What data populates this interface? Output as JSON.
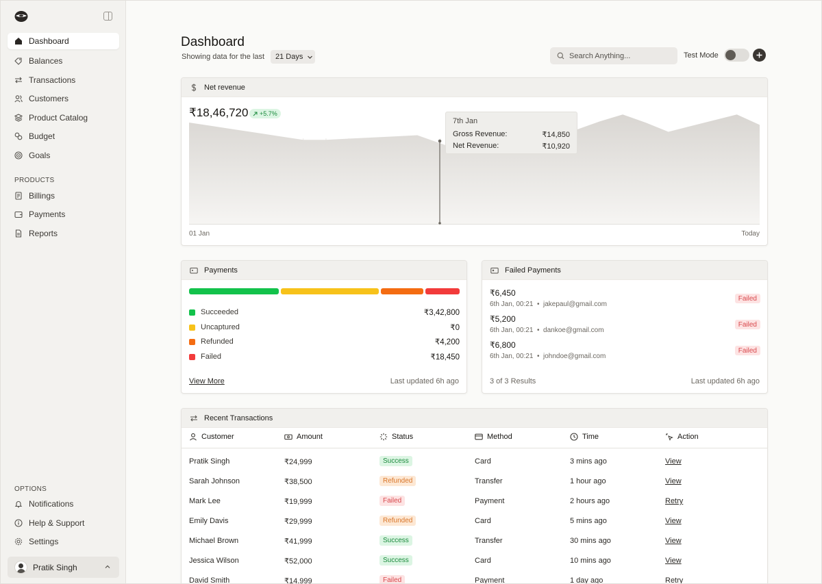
{
  "sidebar": {
    "items": [
      {
        "label": "Dashboard",
        "icon": "home-icon"
      },
      {
        "label": "Balances",
        "icon": "tag-icon"
      },
      {
        "label": "Transactions",
        "icon": "arrows-icon"
      },
      {
        "label": "Customers",
        "icon": "users-icon"
      },
      {
        "label": "Product Catalog",
        "icon": "layers-icon"
      },
      {
        "label": "Budget",
        "icon": "coins-icon"
      },
      {
        "label": "Goals",
        "icon": "target-icon"
      }
    ],
    "products_label": "PRODUCTS",
    "products": [
      {
        "label": "Billings",
        "icon": "receipt-icon"
      },
      {
        "label": "Payments",
        "icon": "wallet-icon"
      },
      {
        "label": "Reports",
        "icon": "file-icon"
      }
    ],
    "options_label": "OPTIONS",
    "options": [
      {
        "label": "Notifications",
        "icon": "bell-icon"
      },
      {
        "label": "Help & Support",
        "icon": "info-icon"
      },
      {
        "label": "Settings",
        "icon": "gear-icon"
      }
    ],
    "user_name": "Pratik Singh"
  },
  "header": {
    "title": "Dashboard",
    "subtitle": "Showing data for the last",
    "range": "21 Days",
    "search_placeholder": "Search Anything...",
    "test_mode_label": "Test Mode",
    "test_mode_on": false
  },
  "revenue": {
    "title": "Net revenue",
    "total": "₹18,46,720",
    "change": "+5.7%",
    "tooltip": {
      "date": "7th Jan",
      "gross_label": "Gross Revenue:",
      "gross_value": "₹14,850",
      "net_label": "Net Revenue:",
      "net_value": "₹10,920"
    },
    "x_start": "01 Jan",
    "x_end": "Today"
  },
  "chart_data": {
    "type": "area",
    "title": "Net revenue",
    "x": [
      "01 Jan",
      "",
      "",
      "",
      "",
      "",
      "",
      "",
      "",
      "",
      "",
      "",
      "",
      "",
      "",
      "",
      "",
      "",
      "",
      "",
      "",
      "",
      "",
      "",
      "",
      "Today"
    ],
    "values": [
      88,
      85,
      82,
      79,
      76,
      73,
      73,
      74,
      75,
      76,
      77,
      70,
      63,
      66,
      69,
      72,
      75,
      82,
      89,
      95,
      88,
      80,
      85,
      90,
      95,
      86
    ],
    "ylim": [
      0,
      110
    ],
    "grid": true
  },
  "payments": {
    "title": "Payments",
    "rows": [
      {
        "label": "Succeeded",
        "value": "₹3,42,800",
        "color": "#13c24b"
      },
      {
        "label": "Uncaptured",
        "value": "₹0",
        "color": "#f7c21a"
      },
      {
        "label": "Refunded",
        "value": "₹4,200",
        "color": "#f46c12"
      },
      {
        "label": "Failed",
        "value": "₹18,450",
        "color": "#f23b3b"
      }
    ],
    "bar_shares": [
      0.34,
      0.37,
      0.16,
      0.13
    ],
    "view_more": "View More",
    "updated": "Last updated 6h ago"
  },
  "failed_payments": {
    "title": "Failed Payments",
    "items": [
      {
        "amount": "₹6,450",
        "date": "6th Jan, 00:21",
        "email": "jakepaul@gmail.com",
        "status": "Failed"
      },
      {
        "amount": "₹5,200",
        "date": "6th Jan, 00:21",
        "email": "dankoe@gmail.com",
        "status": "Failed"
      },
      {
        "amount": "₹6,800",
        "date": "6th Jan, 00:21",
        "email": "johndoe@gmail.com",
        "status": "Failed"
      }
    ],
    "results": "3 of 3 Results",
    "updated": "Last updated 6h ago"
  },
  "transactions": {
    "title": "Recent Transactions",
    "columns": [
      "Customer",
      "Amount",
      "Status",
      "Method",
      "Time",
      "Action"
    ],
    "rows": [
      {
        "customer": "Pratik Singh",
        "amount": "₹24,999",
        "status": "Success",
        "method": "Card",
        "time": "3 mins ago",
        "action": "View"
      },
      {
        "customer": "Sarah Johnson",
        "amount": "₹38,500",
        "status": "Refunded",
        "method": "Transfer",
        "time": "1 hour ago",
        "action": "View"
      },
      {
        "customer": "Mark Lee",
        "amount": "₹19,999",
        "status": "Failed",
        "method": "Payment",
        "time": "2 hours ago",
        "action": "Retry"
      },
      {
        "customer": "Emily Davis",
        "amount": "₹29,999",
        "status": "Refunded",
        "method": "Card",
        "time": "5 mins ago",
        "action": "View"
      },
      {
        "customer": "Michael Brown",
        "amount": "₹41,999",
        "status": "Success",
        "method": "Transfer",
        "time": "30 mins ago",
        "action": "View"
      },
      {
        "customer": "Jessica Wilson",
        "amount": "₹52,000",
        "status": "Success",
        "method": "Card",
        "time": "10 mins ago",
        "action": "View"
      },
      {
        "customer": "David Smith",
        "amount": "₹14,999",
        "status": "Failed",
        "method": "Payment",
        "time": "1 day ago",
        "action": "Retry"
      }
    ]
  }
}
